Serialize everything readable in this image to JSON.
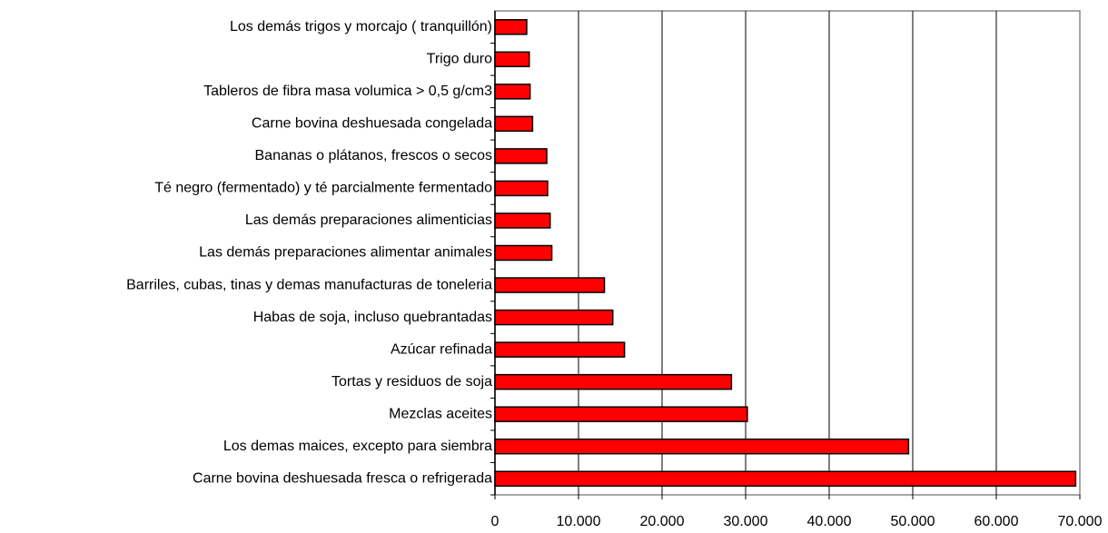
{
  "chart_data": {
    "type": "bar",
    "orientation": "horizontal",
    "categories": [
      "Carne bovina deshuesada fresca o refrigerada",
      "Los demas maices, excepto para siembra",
      "Mezclas aceites",
      "Tortas y residuos de soja",
      "Azúcar refinada",
      "Habas de soja, incluso quebrantadas",
      "Barriles, cubas, tinas y demas manufacturas de toneleria",
      "Las demás preparaciones alimentar animales",
      "Las demás preparaciones alimenticias",
      "Té negro (fermentado) y té parcialmente fermentado",
      "Bananas o plátanos, frescos o secos",
      "Carne bovina deshuesada congelada",
      "Tableros de fibra masa volumica > 0,5 g/cm3",
      "Trigo duro",
      "Los demás trigos y morcajo ( tranquillón)"
    ],
    "values": [
      69500,
      49500,
      30200,
      28300,
      15500,
      14100,
      13100,
      6800,
      6600,
      6300,
      6200,
      4500,
      4200,
      4100,
      3800
    ],
    "color": "#ff0000",
    "xlim": [
      0,
      70000
    ],
    "xticks": [
      0,
      {
        "value": 10000,
        "label": "10.000"
      },
      {
        "value": 20000,
        "label": "20.000"
      },
      {
        "value": 30000,
        "label": "30.000"
      },
      {
        "value": 40000,
        "label": "40.000"
      },
      {
        "value": 50000,
        "label": "50.000"
      },
      {
        "value": 60000,
        "label": "60.000"
      },
      {
        "value": 70000,
        "label": "70.000"
      }
    ],
    "grid": true
  }
}
